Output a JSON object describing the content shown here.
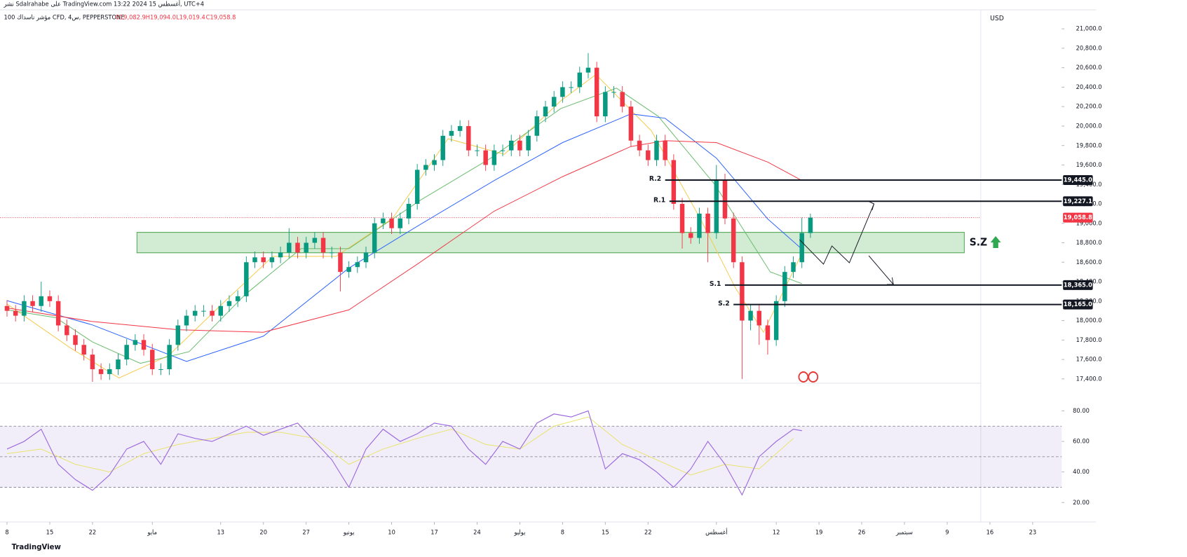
{
  "header": {
    "publisher": "نشر Sdalrahabe على TradingView.com 13:22 2024 أغسطس 15, UTC+4",
    "symbol": "100 مؤشر ناسداك CFD, 4س, PEPPERSTONE",
    "open": "O19,082.9",
    "high": "H19,094.0",
    "low": "L19,019.4",
    "close": "C19,058.8"
  },
  "footer": "TradingView",
  "chart_data": {
    "type": "candlestick",
    "y_axis_label": "USD",
    "up_color": "#089981",
    "down_color": "#f23645",
    "xlim": [
      -0.82,
      123.4
    ],
    "xticks": [
      {
        "value": 0,
        "label": "8"
      },
      {
        "value": 5,
        "label": "15"
      },
      {
        "value": 10,
        "label": "22"
      },
      {
        "value": 17,
        "label": "مايو"
      },
      {
        "value": 25,
        "label": "13"
      },
      {
        "value": 30,
        "label": "20"
      },
      {
        "value": 35,
        "label": "27"
      },
      {
        "value": 40,
        "label": "يونيو"
      },
      {
        "value": 45,
        "label": "10"
      },
      {
        "value": 50,
        "label": "17"
      },
      {
        "value": 55,
        "label": "24"
      },
      {
        "value": 60,
        "label": "يوليو"
      },
      {
        "value": 65,
        "label": "8"
      },
      {
        "value": 70,
        "label": "15"
      },
      {
        "value": 75,
        "label": "22"
      },
      {
        "value": 83,
        "label": "أغسطس"
      },
      {
        "value": 90,
        "label": "12"
      },
      {
        "value": 95,
        "label": "19"
      },
      {
        "value": 100,
        "label": "26"
      },
      {
        "value": 105,
        "label": "سبتمبر"
      },
      {
        "value": 110,
        "label": "9"
      },
      {
        "value": 115,
        "label": "16"
      },
      {
        "value": 120,
        "label": "23"
      }
    ],
    "ylim": [
      17370,
      21080
    ],
    "yticks": [
      {
        "value": 17400,
        "label": "17,400.0"
      },
      {
        "value": 17600,
        "label": "17,600.0"
      },
      {
        "value": 17800,
        "label": "17,800.0"
      },
      {
        "value": 18000,
        "label": "18,000.0"
      },
      {
        "value": 18200,
        "label": "18,200.0"
      },
      {
        "value": 18400,
        "label": "18,400.0"
      },
      {
        "value": 18600,
        "label": "18,600.0"
      },
      {
        "value": 18800,
        "label": "18,800.0"
      },
      {
        "value": 19000,
        "label": "19,000.0"
      },
      {
        "value": 19200,
        "label": "19,200.0"
      },
      {
        "value": 19400,
        "label": "19,400.0"
      },
      {
        "value": 19600,
        "label": "19,600.0"
      },
      {
        "value": 19800,
        "label": "19,800.0"
      },
      {
        "value": 20000,
        "label": "20,000.0"
      },
      {
        "value": 20200,
        "label": "20,200.0"
      },
      {
        "value": 20400,
        "label": "20,400.0"
      },
      {
        "value": 20600,
        "label": "20,600.0"
      },
      {
        "value": 20800,
        "label": "20,800.0"
      },
      {
        "value": 21000,
        "label": "21,000.0"
      }
    ],
    "x": [
      0,
      1,
      2,
      3,
      4,
      5,
      6,
      7,
      8,
      9,
      10,
      11,
      12,
      13,
      14,
      15,
      16,
      17,
      18,
      19,
      20,
      21,
      22,
      23,
      24,
      25,
      26,
      27,
      28,
      29,
      30,
      31,
      32,
      33,
      34,
      35,
      36,
      37,
      38,
      39,
      40,
      41,
      42,
      43,
      44,
      45,
      46,
      47,
      48,
      49,
      50,
      51,
      52,
      53,
      54,
      55,
      56,
      57,
      58,
      59,
      60,
      61,
      62,
      63,
      64,
      65,
      66,
      67,
      68,
      69,
      70,
      71,
      72,
      73,
      74,
      75,
      76,
      77,
      78,
      79,
      80,
      81,
      82,
      83,
      84,
      85,
      86,
      87,
      88,
      89,
      90,
      91,
      92,
      93,
      94
    ],
    "ohlc": [
      [
        18150,
        18210,
        18040,
        18100
      ],
      [
        18100,
        18160,
        17990,
        18050
      ],
      [
        18050,
        18260,
        17990,
        18200
      ],
      [
        18200,
        18260,
        18090,
        18150
      ],
      [
        18150,
        18400,
        18090,
        18250
      ],
      [
        18250,
        18310,
        18140,
        18200
      ],
      [
        18200,
        18260,
        17890,
        17950
      ],
      [
        17950,
        18010,
        17790,
        17850
      ],
      [
        17850,
        17910,
        17690,
        17750
      ],
      [
        17750,
        17810,
        17590,
        17650
      ],
      [
        17650,
        17710,
        17350,
        17500
      ],
      [
        17500,
        17560,
        17390,
        17450
      ],
      [
        17450,
        17560,
        17390,
        17500
      ],
      [
        17500,
        17660,
        17440,
        17600
      ],
      [
        17600,
        17810,
        17540,
        17750
      ],
      [
        17750,
        17860,
        17690,
        17800
      ],
      [
        17800,
        17860,
        17640,
        17700
      ],
      [
        17700,
        17760,
        17440,
        17500
      ],
      [
        17500,
        17560,
        17440,
        17500
      ],
      [
        17500,
        17810,
        17440,
        17750
      ],
      [
        17750,
        18010,
        17690,
        17950
      ],
      [
        17950,
        18110,
        17890,
        18050
      ],
      [
        18050,
        18160,
        17990,
        18100
      ],
      [
        18100,
        18160,
        18040,
        18100
      ],
      [
        18100,
        18160,
        17990,
        18050
      ],
      [
        18050,
        18210,
        17990,
        18150
      ],
      [
        18150,
        18260,
        18090,
        18200
      ],
      [
        18200,
        18310,
        18140,
        18250
      ],
      [
        18250,
        18660,
        18190,
        18600
      ],
      [
        18600,
        18710,
        18540,
        18650
      ],
      [
        18650,
        18710,
        18540,
        18600
      ],
      [
        18600,
        18710,
        18540,
        18650
      ],
      [
        18650,
        18760,
        18590,
        18700
      ],
      [
        18700,
        18950,
        18640,
        18800
      ],
      [
        18800,
        18860,
        18640,
        18700
      ],
      [
        18700,
        18860,
        18640,
        18800
      ],
      [
        18800,
        18910,
        18740,
        18850
      ],
      [
        18850,
        18910,
        18640,
        18700
      ],
      [
        18700,
        18760,
        18640,
        18700
      ],
      [
        18700,
        18760,
        18300,
        18500
      ],
      [
        18500,
        18610,
        18440,
        18550
      ],
      [
        18550,
        18660,
        18490,
        18600
      ],
      [
        18600,
        18760,
        18540,
        18700
      ],
      [
        18700,
        19060,
        18640,
        19000
      ],
      [
        19000,
        19110,
        18940,
        19050
      ],
      [
        19050,
        19110,
        18890,
        18950
      ],
      [
        18950,
        19110,
        18890,
        19050
      ],
      [
        19050,
        19260,
        18990,
        19200
      ],
      [
        19200,
        19610,
        19140,
        19550
      ],
      [
        19550,
        19660,
        19490,
        19600
      ],
      [
        19600,
        19710,
        19540,
        19650
      ],
      [
        19650,
        19960,
        19590,
        19900
      ],
      [
        19900,
        20010,
        19840,
        19950
      ],
      [
        19950,
        20060,
        19890,
        20000
      ],
      [
        20000,
        20060,
        19690,
        19750
      ],
      [
        19750,
        19810,
        19690,
        19750
      ],
      [
        19750,
        19810,
        19540,
        19600
      ],
      [
        19600,
        19810,
        19540,
        19750
      ],
      [
        19750,
        19810,
        19690,
        19750
      ],
      [
        19750,
        19910,
        19690,
        19850
      ],
      [
        19850,
        19910,
        19690,
        19750
      ],
      [
        19750,
        19960,
        19690,
        19900
      ],
      [
        19900,
        20160,
        19840,
        20100
      ],
      [
        20100,
        20260,
        20040,
        20200
      ],
      [
        20200,
        20360,
        20140,
        20300
      ],
      [
        20300,
        20460,
        20240,
        20400
      ],
      [
        20400,
        20460,
        20340,
        20400
      ],
      [
        20400,
        20610,
        20340,
        20550
      ],
      [
        20550,
        20750,
        20490,
        20600
      ],
      [
        20600,
        20660,
        20040,
        20100
      ],
      [
        20100,
        20410,
        20040,
        20350
      ],
      [
        20350,
        20410,
        20290,
        20350
      ],
      [
        20350,
        20410,
        20140,
        20200
      ],
      [
        20200,
        20260,
        19790,
        19850
      ],
      [
        19850,
        19910,
        19690,
        19750
      ],
      [
        19750,
        19810,
        19590,
        19650
      ],
      [
        19650,
        19910,
        19590,
        19850
      ],
      [
        19850,
        19910,
        19590,
        19650
      ],
      [
        19650,
        19710,
        19140,
        19200
      ],
      [
        19200,
        19260,
        18740,
        18900
      ],
      [
        18900,
        18960,
        18790,
        18850
      ],
      [
        18850,
        19160,
        18790,
        19100
      ],
      [
        19100,
        19160,
        18600,
        18900
      ],
      [
        18900,
        19600,
        18840,
        19450
      ],
      [
        19450,
        19510,
        18990,
        19050
      ],
      [
        19050,
        19110,
        18540,
        18600
      ],
      [
        18600,
        18660,
        17400,
        18000
      ],
      [
        18000,
        18160,
        17900,
        18100
      ],
      [
        18100,
        18160,
        17750,
        17950
      ],
      [
        17950,
        18010,
        17650,
        17800
      ],
      [
        17800,
        18260,
        17740,
        18200
      ],
      [
        18200,
        18560,
        18140,
        18500
      ],
      [
        18500,
        18660,
        18440,
        18600
      ],
      [
        18600,
        19060,
        18540,
        18900
      ],
      [
        18900,
        19100,
        18850,
        19058.8
      ]
    ],
    "moving_averages": [
      {
        "color": "#f7c948",
        "x": [
          0,
          7.4,
          13.1,
          18.9,
          25.4,
          31.1,
          38.5,
          45.1,
          51.6,
          58.2,
          64.8,
          68.9,
          75.4,
          81.1,
          85.2,
          88.5,
          93
        ],
        "values": [
          18170,
          17720,
          17410,
          17640,
          18190,
          18660,
          18660,
          19050,
          19870,
          19710,
          20260,
          20530,
          19950,
          19050,
          18340,
          17880,
          18690
        ]
      },
      {
        "color": "#66bb6a",
        "x": [
          0,
          5.7,
          10,
          15.6,
          21.3,
          27.9,
          34.4,
          40,
          48.4,
          56.6,
          64.8,
          71.3,
          76.2,
          82.8,
          89.3,
          93
        ],
        "values": [
          18110,
          18030,
          17780,
          17560,
          17680,
          18270,
          18740,
          18740,
          19240,
          19670,
          20180,
          20390,
          20100,
          19400,
          18500,
          18380
        ]
      },
      {
        "color": "#2962ff",
        "x": [
          0,
          10,
          21,
          30,
          40,
          48,
          57,
          65,
          73,
          77,
          83,
          89,
          93
        ],
        "values": [
          18205,
          17955,
          17580,
          17840,
          18540,
          18970,
          19440,
          19830,
          20125,
          20080,
          19670,
          19045,
          18735
        ]
      },
      {
        "color": "#f23645",
        "x": [
          0,
          10,
          20,
          30,
          40,
          48,
          57,
          65,
          73,
          77,
          83,
          89,
          93
        ],
        "values": [
          18130,
          17990,
          17906,
          17880,
          18110,
          18580,
          19125,
          19480,
          19790,
          19850,
          19830,
          19630,
          19440
        ]
      }
    ],
    "levels": [
      {
        "name": "R.2",
        "value": 19445,
        "label": "19,445.0",
        "from": 77
      }
    ],
    "levels_more": [
      {
        "name": "R.1",
        "value": 19227.1,
        "label": "19,227.1",
        "from": 77.5
      },
      {
        "name": "S.1",
        "value": 18365,
        "label": "18,365.0",
        "from": 84
      },
      {
        "name": "S.2",
        "value": 18165,
        "label": "18,165.0",
        "from": 85
      }
    ],
    "last_price": {
      "value": 19058.8,
      "label": "19,058.8",
      "color": "#f23645"
    },
    "zone": {
      "label": "S.Z",
      "low": 18697,
      "high": 18907,
      "from": 15.2,
      "to": 112
    },
    "rsi": {
      "type": "line",
      "color": "#9c6ade",
      "ylim": [
        8.2,
        96.7
      ],
      "yticks": [
        {
          "value": 20,
          "label": "20.00"
        },
        {
          "value": 40,
          "label": "40.00"
        },
        {
          "value": 60,
          "label": "60.00"
        },
        {
          "value": 80,
          "label": "80.00"
        }
      ],
      "band": [
        30,
        70
      ],
      "mid": 50,
      "x": [
        0,
        2,
        4,
        6,
        8,
        10,
        12,
        14,
        16,
        18,
        20,
        22,
        24,
        26,
        28,
        30,
        32,
        34,
        36,
        38,
        40,
        42,
        44,
        46,
        48,
        50,
        52,
        54,
        56,
        58,
        60,
        62,
        64,
        66,
        68,
        70,
        72,
        74,
        76,
        78,
        80,
        82,
        84,
        86,
        88,
        90,
        92,
        93
      ],
      "values": [
        55,
        60,
        68,
        45,
        35,
        28,
        38,
        55,
        60,
        45,
        65,
        62,
        60,
        65,
        70,
        64,
        68,
        72,
        60,
        48,
        30,
        55,
        68,
        60,
        65,
        72,
        70,
        55,
        45,
        60,
        55,
        72,
        78,
        76,
        80,
        42,
        52,
        48,
        40,
        30,
        42,
        60,
        45,
        25,
        50,
        60,
        68,
        67
      ],
      "signal": {
        "color": "#e8e36b",
        "x": [
          0,
          4,
          8,
          12,
          16,
          20,
          24,
          28,
          32,
          36,
          40,
          44,
          48,
          52,
          56,
          60,
          64,
          68,
          72,
          76,
          80,
          84,
          88,
          92
        ],
        "values": [
          52,
          55,
          45,
          40,
          52,
          58,
          62,
          66,
          66,
          62,
          45,
          55,
          62,
          68,
          58,
          55,
          70,
          76,
          58,
          48,
          38,
          45,
          42,
          62
        ]
      }
    }
  }
}
